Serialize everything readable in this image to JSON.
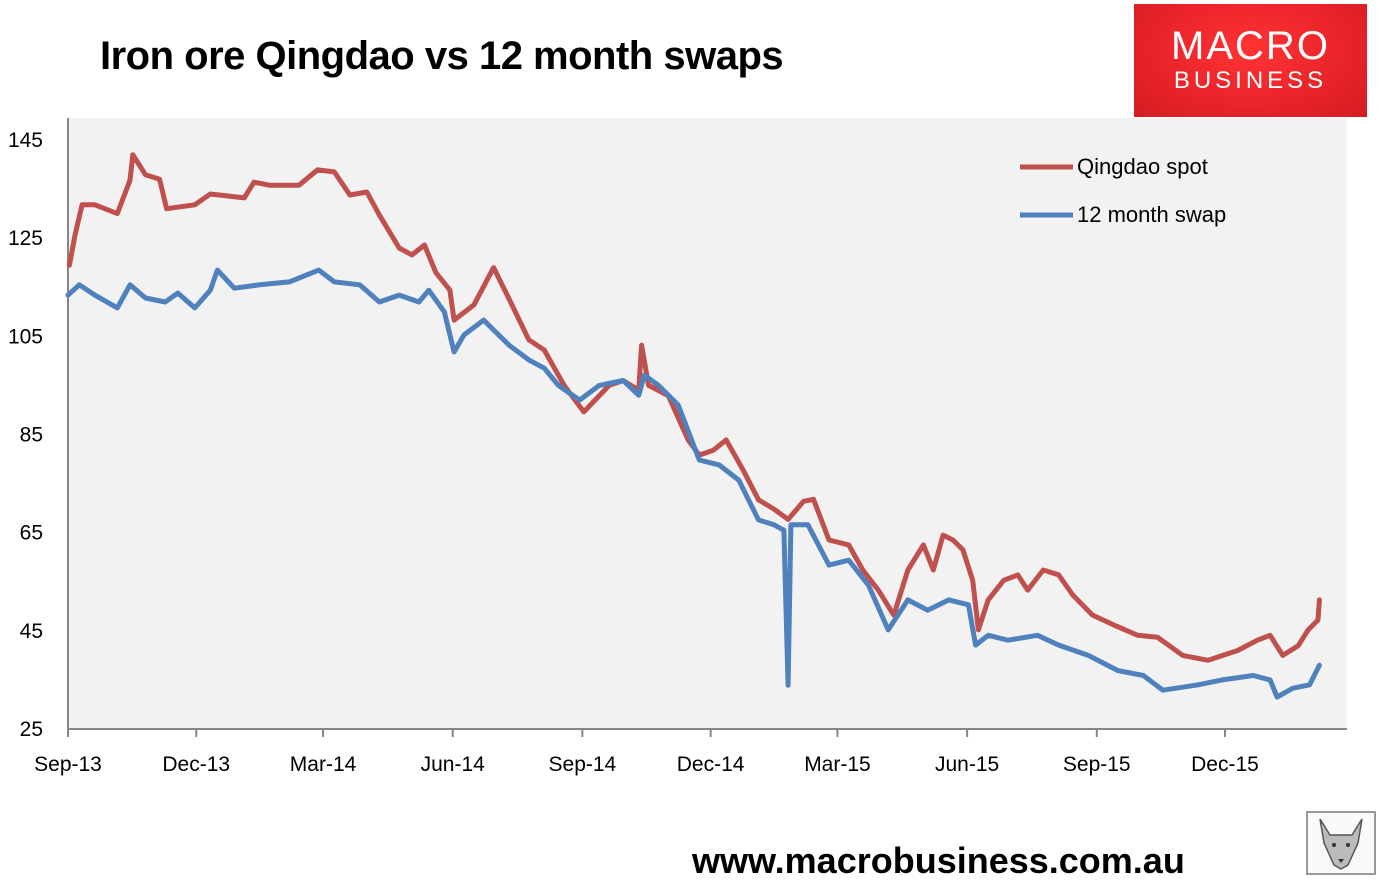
{
  "header": {
    "title": "Iron ore Qingdao vs 12 month swaps"
  },
  "logo": {
    "line1": "MACRO",
    "line2": "BUSINESS"
  },
  "footer": {
    "url": "www.macrobusiness.com.au"
  },
  "chart_data": {
    "type": "line",
    "title": "Iron ore Qingdao vs 12 month swaps",
    "xlabel": "",
    "ylabel": "",
    "ylim": [
      25,
      145
    ],
    "yticks": [
      25,
      45,
      65,
      85,
      105,
      125,
      145
    ],
    "xlim": [
      "2013-09-01",
      "2016-03-15"
    ],
    "xticks": [
      {
        "date": "2013-09-01",
        "label": "Sep-13"
      },
      {
        "date": "2013-12-01",
        "label": "Dec-13"
      },
      {
        "date": "2014-03-01",
        "label": "Mar-14"
      },
      {
        "date": "2014-06-01",
        "label": "Jun-14"
      },
      {
        "date": "2014-09-01",
        "label": "Sep-14"
      },
      {
        "date": "2014-12-01",
        "label": "Dec-14"
      },
      {
        "date": "2015-03-01",
        "label": "Mar-15"
      },
      {
        "date": "2015-06-01",
        "label": "Jun-15"
      },
      {
        "date": "2015-09-01",
        "label": "Sep-15"
      },
      {
        "date": "2015-12-01",
        "label": "Dec-15"
      }
    ],
    "grid": false,
    "legend": "top-right",
    "background": "#f2f2f2",
    "series": [
      {
        "name": "Qingdao spot",
        "color": "#c0504d",
        "points": [
          [
            "2013-09-02",
            119.5
          ],
          [
            "2013-09-06",
            125.6
          ],
          [
            "2013-09-11",
            131.8
          ],
          [
            "2013-09-20",
            131.8
          ],
          [
            "2013-10-06",
            130
          ],
          [
            "2013-10-15",
            136.8
          ],
          [
            "2013-10-17",
            142
          ],
          [
            "2013-10-26",
            137.9
          ],
          [
            "2013-11-05",
            137
          ],
          [
            "2013-11-10",
            131
          ],
          [
            "2013-11-30",
            131.8
          ],
          [
            "2013-12-11",
            134
          ],
          [
            "2014-01-04",
            133.2
          ],
          [
            "2014-01-11",
            136.4
          ],
          [
            "2014-01-22",
            135.8
          ],
          [
            "2014-02-12",
            135.8
          ],
          [
            "2014-02-25",
            138.9
          ],
          [
            "2014-03-09",
            138.5
          ],
          [
            "2014-03-20",
            133.8
          ],
          [
            "2014-04-01",
            134.4
          ],
          [
            "2014-04-10",
            129.7
          ],
          [
            "2014-04-24",
            123
          ],
          [
            "2014-05-03",
            121.6
          ],
          [
            "2014-05-12",
            123.6
          ],
          [
            "2014-05-20",
            118
          ],
          [
            "2014-05-30",
            114.4
          ],
          [
            "2014-06-02",
            108.3
          ],
          [
            "2014-06-16",
            111.4
          ],
          [
            "2014-06-30",
            119
          ],
          [
            "2014-07-11",
            112.6
          ],
          [
            "2014-07-25",
            104.3
          ],
          [
            "2014-08-05",
            102.2
          ],
          [
            "2014-08-19",
            95
          ],
          [
            "2014-09-02",
            89.6
          ],
          [
            "2014-09-20",
            95
          ],
          [
            "2014-09-30",
            96
          ],
          [
            "2014-10-11",
            94
          ],
          [
            "2014-10-13",
            103.2
          ],
          [
            "2014-10-18",
            95
          ],
          [
            "2014-11-01",
            92.9
          ],
          [
            "2014-11-15",
            83.9
          ],
          [
            "2014-11-23",
            80.8
          ],
          [
            "2014-12-03",
            81.8
          ],
          [
            "2014-12-12",
            83.9
          ],
          [
            "2014-12-24",
            77.8
          ],
          [
            "2015-01-04",
            71.7
          ],
          [
            "2015-01-15",
            69.8
          ],
          [
            "2015-01-25",
            67.7
          ],
          [
            "2015-02-05",
            71.4
          ],
          [
            "2015-02-12",
            71.8
          ],
          [
            "2015-02-23",
            63.5
          ],
          [
            "2015-03-09",
            62.5
          ],
          [
            "2015-03-19",
            57.4
          ],
          [
            "2015-03-30",
            53.3
          ],
          [
            "2015-04-10",
            48.2
          ],
          [
            "2015-04-20",
            57.4
          ],
          [
            "2015-05-01",
            62.5
          ],
          [
            "2015-05-08",
            57.4
          ],
          [
            "2015-05-15",
            64.5
          ],
          [
            "2015-05-22",
            63.5
          ],
          [
            "2015-05-29",
            61.5
          ],
          [
            "2015-06-05",
            55.3
          ],
          [
            "2015-06-09",
            45.2
          ],
          [
            "2015-06-16",
            51.3
          ],
          [
            "2015-06-27",
            55.3
          ],
          [
            "2015-07-07",
            56.4
          ],
          [
            "2015-07-14",
            53.3
          ],
          [
            "2015-07-25",
            57.4
          ],
          [
            "2015-08-05",
            56.4
          ],
          [
            "2015-08-15",
            52.3
          ],
          [
            "2015-08-29",
            48.2
          ],
          [
            "2015-09-13",
            46.2
          ],
          [
            "2015-09-30",
            44.1
          ],
          [
            "2015-10-14",
            43.7
          ],
          [
            "2015-11-01",
            40
          ],
          [
            "2015-11-19",
            39
          ],
          [
            "2015-12-10",
            41
          ],
          [
            "2015-12-24",
            43.1
          ],
          [
            "2016-01-02",
            44.1
          ],
          [
            "2016-01-11",
            40
          ],
          [
            "2016-01-22",
            42
          ],
          [
            "2016-01-29",
            45.2
          ],
          [
            "2016-02-05",
            47.2
          ],
          [
            "2016-02-06",
            51.3
          ]
        ]
      },
      {
        "name": "12 month swap",
        "color": "#4f81bd",
        "points": [
          [
            "2013-09-01",
            113.4
          ],
          [
            "2013-09-09",
            115.5
          ],
          [
            "2013-09-20",
            113.4
          ],
          [
            "2013-10-06",
            110.8
          ],
          [
            "2013-10-15",
            115.5
          ],
          [
            "2013-10-26",
            112.8
          ],
          [
            "2013-11-09",
            112
          ],
          [
            "2013-11-18",
            113.8
          ],
          [
            "2013-11-30",
            110.8
          ],
          [
            "2013-12-11",
            114.4
          ],
          [
            "2013-12-16",
            118.5
          ],
          [
            "2013-12-28",
            114.8
          ],
          [
            "2014-01-15",
            115.5
          ],
          [
            "2014-02-05",
            116.1
          ],
          [
            "2014-02-26",
            118.5
          ],
          [
            "2014-03-09",
            116.1
          ],
          [
            "2014-03-27",
            115.5
          ],
          [
            "2014-04-10",
            112
          ],
          [
            "2014-04-24",
            113.4
          ],
          [
            "2014-05-08",
            112
          ],
          [
            "2014-05-15",
            114.4
          ],
          [
            "2014-05-26",
            110
          ],
          [
            "2014-06-02",
            101.8
          ],
          [
            "2014-06-09",
            105.3
          ],
          [
            "2014-06-23",
            108.3
          ],
          [
            "2014-06-30",
            106.3
          ],
          [
            "2014-07-11",
            103.2
          ],
          [
            "2014-07-25",
            100.2
          ],
          [
            "2014-08-05",
            98.5
          ],
          [
            "2014-08-15",
            95
          ],
          [
            "2014-08-30",
            92
          ],
          [
            "2014-09-13",
            95
          ],
          [
            "2014-09-30",
            96
          ],
          [
            "2014-10-11",
            93
          ],
          [
            "2014-10-15",
            97.1
          ],
          [
            "2014-10-25",
            95
          ],
          [
            "2014-11-08",
            91
          ],
          [
            "2014-11-23",
            79.8
          ],
          [
            "2014-12-07",
            78.8
          ],
          [
            "2014-12-21",
            75.7
          ],
          [
            "2015-01-04",
            67.6
          ],
          [
            "2015-01-15",
            66.6
          ],
          [
            "2015-01-22",
            65.5
          ],
          [
            "2015-01-25",
            33.9
          ],
          [
            "2015-01-27",
            66.6
          ],
          [
            "2015-02-08",
            66.6
          ],
          [
            "2015-02-23",
            58.4
          ],
          [
            "2015-03-09",
            59.4
          ],
          [
            "2015-03-23",
            54.3
          ],
          [
            "2015-04-06",
            45.2
          ],
          [
            "2015-04-20",
            51.3
          ],
          [
            "2015-05-04",
            49.2
          ],
          [
            "2015-05-19",
            51.3
          ],
          [
            "2015-06-02",
            50.3
          ],
          [
            "2015-06-07",
            42.1
          ],
          [
            "2015-06-16",
            44.1
          ],
          [
            "2015-06-30",
            43.1
          ],
          [
            "2015-07-21",
            44.1
          ],
          [
            "2015-08-05",
            42.1
          ],
          [
            "2015-08-26",
            40
          ],
          [
            "2015-09-16",
            36.9
          ],
          [
            "2015-10-04",
            35.9
          ],
          [
            "2015-10-18",
            32.9
          ],
          [
            "2015-11-12",
            34
          ],
          [
            "2015-11-29",
            35
          ],
          [
            "2015-12-21",
            35.9
          ],
          [
            "2016-01-02",
            35
          ],
          [
            "2016-01-07",
            31.5
          ],
          [
            "2016-01-18",
            33.3
          ],
          [
            "2016-01-30",
            34
          ],
          [
            "2016-02-06",
            38
          ]
        ]
      }
    ]
  }
}
